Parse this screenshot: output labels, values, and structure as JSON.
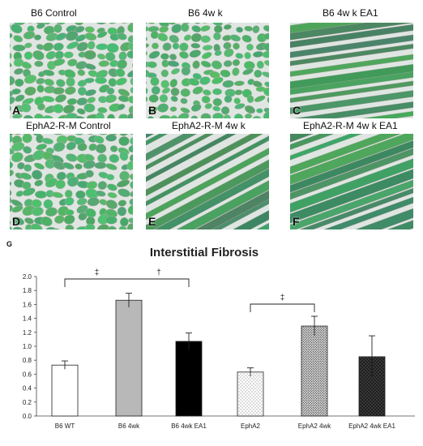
{
  "panels": [
    {
      "title": "B6 Control",
      "letter": "A"
    },
    {
      "title": "B6 4w k",
      "letter": "B"
    },
    {
      "title": "B6 4w k EA1",
      "letter": "C"
    },
    {
      "title": "EphA2-R-M Control",
      "letter": "D"
    },
    {
      "title": "EphA2-R-M 4w k",
      "letter": "E"
    },
    {
      "title": "EphA2-R-M 4w k EA1",
      "letter": "F"
    }
  ],
  "figure_label": "G",
  "colors": {
    "tissue": "#5fa878",
    "background": "#dfe6e2"
  },
  "chart_data": {
    "type": "bar",
    "title": "Interstitial Fibrosis",
    "categories": [
      "B6 WT",
      "B6 4wk",
      "B6 4wk EA1",
      "EphA2",
      "EphA2 4wk",
      "EphA2 4wk EA1"
    ],
    "values": [
      0.73,
      1.66,
      1.07,
      0.63,
      1.29,
      0.85
    ],
    "errors": [
      0.06,
      0.1,
      0.12,
      0.06,
      0.14,
      0.3
    ],
    "bar_styles": [
      "white",
      "gray",
      "black",
      "dotted-light",
      "dotted-medium",
      "dotted-dark"
    ],
    "ylim": [
      0,
      2.0
    ],
    "yticks": [
      "0.0",
      "0.2",
      "0.4",
      "0.6",
      "0.8",
      "1.0",
      "1.2",
      "1.4",
      "1.6",
      "1.8",
      "2.0"
    ],
    "grid": false,
    "annotations": [
      {
        "from": 0,
        "to": 2,
        "markers": [
          {
            "at": 0.5,
            "symbol": "‡"
          },
          {
            "at": 1.5,
            "symbol": "†"
          }
        ]
      },
      {
        "from": 3,
        "to": 4,
        "markers": [
          {
            "at": 3.5,
            "symbol": "‡"
          }
        ]
      }
    ]
  }
}
